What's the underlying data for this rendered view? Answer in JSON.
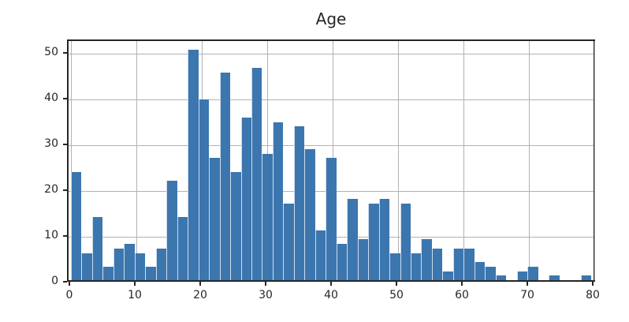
{
  "title": "Age",
  "chart_data": {
    "type": "bar",
    "subtype": "histogram",
    "title": "Age",
    "xlabel": "",
    "ylabel": "",
    "x_range": [
      0,
      80
    ],
    "xlim": [
      -1,
      81
    ],
    "ylim": [
      0,
      52.9
    ],
    "x_ticks": [
      0,
      10,
      20,
      30,
      40,
      50,
      60,
      70,
      80
    ],
    "y_ticks": [
      0,
      10,
      20,
      30,
      40,
      50
    ],
    "grid": true,
    "legend": "none",
    "bar_color": "#3c76af",
    "bar_edge_color": "#ffffff",
    "grid_color": "#b2b2b2",
    "spine_color": "#262626",
    "bins": 49,
    "counts": [
      24,
      6,
      14,
      3,
      7,
      8,
      6,
      3,
      7,
      22,
      14,
      51,
      40,
      27,
      46,
      24,
      36,
      47,
      28,
      35,
      17,
      34,
      29,
      11,
      27,
      8,
      18,
      9,
      17,
      18,
      6,
      17,
      6,
      9,
      7,
      2,
      7,
      7,
      4,
      3,
      1,
      0,
      2,
      3,
      0,
      1,
      0,
      0,
      1
    ]
  }
}
